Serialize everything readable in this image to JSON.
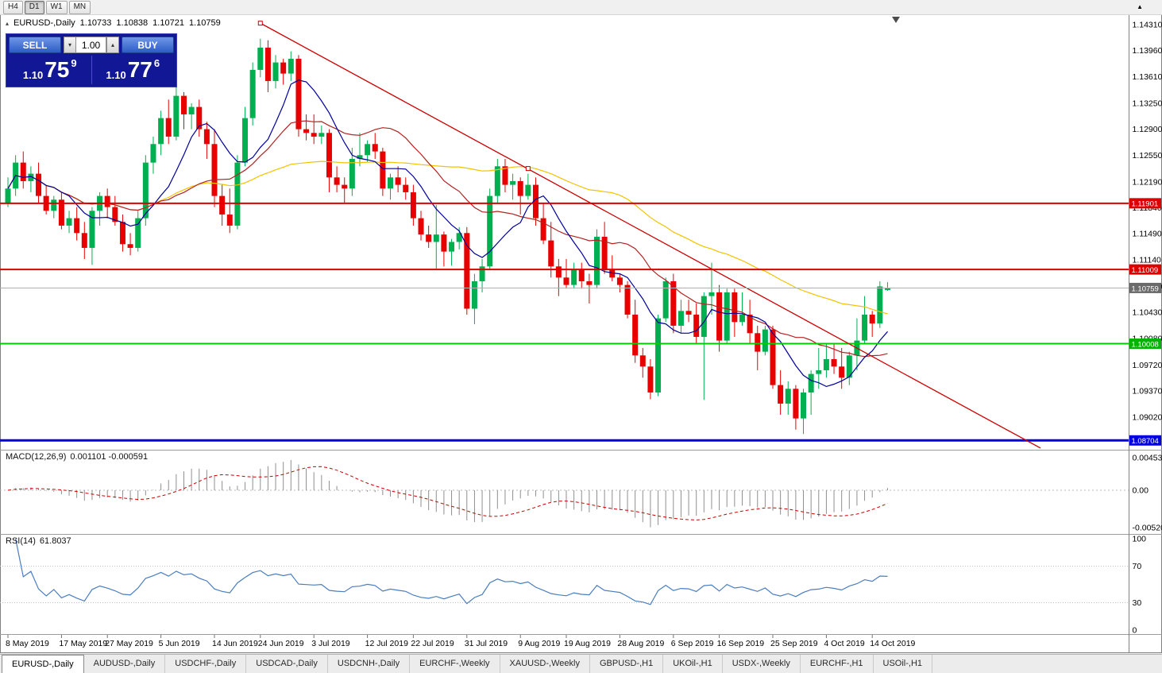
{
  "toolbar": {
    "timeframes": [
      "H4",
      "D1",
      "W1",
      "MN"
    ],
    "active": "D1",
    "overflow_icon": "▲"
  },
  "chart_header": {
    "collapse_icon": "▴",
    "symbol": "EURUSD-,Daily",
    "open": "1.10733",
    "high": "1.10838",
    "low": "1.10721",
    "close": "1.10759"
  },
  "one_click": {
    "sell": "SELL",
    "buy": "BUY",
    "volume": "1.00",
    "spin_down": "▾",
    "spin_up": "▴",
    "bid": {
      "head": "1.10",
      "big": "75",
      "sup": "9"
    },
    "ask": {
      "head": "1.10",
      "big": "77",
      "sup": "6"
    }
  },
  "indicators": {
    "macd": {
      "label": "MACD(12,26,9)",
      "values": "0.001101 -0.000591",
      "fast": 12,
      "slow": 26,
      "signal": 9,
      "axis": [
        {
          "text": "0.004536",
          "v": 0.004536
        },
        {
          "text": "0.00",
          "v": 0
        },
        {
          "text": "-0.005205",
          "v": -0.005205
        }
      ]
    },
    "rsi": {
      "label": "RSI(14)",
      "value": "61.8037",
      "period": 14,
      "levels": [
        {
          "text": "100",
          "v": 100
        },
        {
          "text": "70",
          "v": 70
        },
        {
          "text": "30",
          "v": 30
        },
        {
          "text": "0",
          "v": 0
        }
      ]
    }
  },
  "price_axis": {
    "labels": [
      "1.14310",
      "1.13960",
      "1.13610",
      "1.13250",
      "1.12900",
      "1.12550",
      "1.12190",
      "1.11840",
      "1.11490",
      "1.11140",
      "1.10780",
      "1.10430",
      "1.10080",
      "1.09720",
      "1.09370",
      "1.09020"
    ],
    "tags": [
      {
        "text": "1.11901",
        "price": 1.11901,
        "bg": "#dd0000"
      },
      {
        "text": "1.11009",
        "price": 1.11009,
        "bg": "#dd0000"
      },
      {
        "text": "1.10759",
        "price": 1.10759,
        "bg": "#6b6b6b"
      },
      {
        "text": "1.10008",
        "price": 1.10008,
        "bg": "#00b300"
      },
      {
        "text": "1.08704",
        "price": 1.08704,
        "bg": "#0000dd"
      }
    ]
  },
  "chart_data": {
    "type": "candlestick",
    "symbol": "EURUSD-",
    "timeframe": "Daily",
    "bull_color": "#00b050",
    "bear_color": "#e80000",
    "candles": [
      [
        1.119,
        1.1225,
        1.1185,
        1.121
      ],
      [
        1.121,
        1.1255,
        1.12,
        1.1245
      ],
      [
        1.1245,
        1.126,
        1.121,
        1.122
      ],
      [
        1.122,
        1.124,
        1.1205,
        1.123
      ],
      [
        1.123,
        1.1245,
        1.119,
        1.12
      ],
      [
        1.12,
        1.1215,
        1.1175,
        1.118
      ],
      [
        1.118,
        1.12,
        1.117,
        1.1195
      ],
      [
        1.1195,
        1.1205,
        1.1155,
        1.116
      ],
      [
        1.116,
        1.118,
        1.115,
        1.117
      ],
      [
        1.117,
        1.1185,
        1.114,
        1.115
      ],
      [
        1.115,
        1.1165,
        1.1115,
        1.113
      ],
      [
        1.113,
        1.1185,
        1.1107,
        1.118
      ],
      [
        1.118,
        1.1205,
        1.116,
        1.12
      ],
      [
        1.12,
        1.121,
        1.117,
        1.1185
      ],
      [
        1.1185,
        1.12,
        1.116,
        1.1165
      ],
      [
        1.1165,
        1.1175,
        1.1125,
        1.1135
      ],
      [
        1.1135,
        1.115,
        1.112,
        1.113
      ],
      [
        1.113,
        1.118,
        1.1125,
        1.117
      ],
      [
        1.117,
        1.1255,
        1.116,
        1.1245
      ],
      [
        1.1245,
        1.128,
        1.123,
        1.127
      ],
      [
        1.127,
        1.1315,
        1.1255,
        1.1305
      ],
      [
        1.1305,
        1.133,
        1.127,
        1.128
      ],
      [
        1.128,
        1.1348,
        1.1275,
        1.1335
      ],
      [
        1.1335,
        1.134,
        1.129,
        1.131
      ],
      [
        1.131,
        1.1325,
        1.129,
        1.132
      ],
      [
        1.132,
        1.133,
        1.128,
        1.129
      ],
      [
        1.129,
        1.13,
        1.125,
        1.127
      ],
      [
        1.127,
        1.129,
        1.1185,
        1.12
      ],
      [
        1.12,
        1.1215,
        1.116,
        1.1175
      ],
      [
        1.1175,
        1.121,
        1.115,
        1.116
      ],
      [
        1.116,
        1.1255,
        1.1155,
        1.1245
      ],
      [
        1.1245,
        1.132,
        1.124,
        1.1305
      ],
      [
        1.1305,
        1.138,
        1.1295,
        1.137
      ],
      [
        1.137,
        1.1412,
        1.136,
        1.14
      ],
      [
        1.14,
        1.141,
        1.134,
        1.1355
      ],
      [
        1.1355,
        1.139,
        1.1345,
        1.138
      ],
      [
        1.138,
        1.1385,
        1.135,
        1.1365
      ],
      [
        1.1365,
        1.1395,
        1.1355,
        1.1385
      ],
      [
        1.1385,
        1.139,
        1.128,
        1.129
      ],
      [
        1.129,
        1.131,
        1.1275,
        1.1285
      ],
      [
        1.1285,
        1.131,
        1.127,
        1.128
      ],
      [
        1.128,
        1.1295,
        1.127,
        1.1285
      ],
      [
        1.1285,
        1.129,
        1.1205,
        1.1225
      ],
      [
        1.1225,
        1.124,
        1.1205,
        1.1215
      ],
      [
        1.1215,
        1.1225,
        1.119,
        1.121
      ],
      [
        1.121,
        1.1265,
        1.12,
        1.125
      ],
      [
        1.125,
        1.1285,
        1.124,
        1.1255
      ],
      [
        1.1255,
        1.1275,
        1.1245,
        1.127
      ],
      [
        1.127,
        1.1285,
        1.125,
        1.126
      ],
      [
        1.126,
        1.1265,
        1.12,
        1.121
      ],
      [
        1.121,
        1.123,
        1.1195,
        1.1225
      ],
      [
        1.1225,
        1.124,
        1.1205,
        1.1215
      ],
      [
        1.1215,
        1.1225,
        1.1195,
        1.1205
      ],
      [
        1.1205,
        1.1215,
        1.116,
        1.117
      ],
      [
        1.117,
        1.118,
        1.114,
        1.1148
      ],
      [
        1.1148,
        1.116,
        1.113,
        1.1138
      ],
      [
        1.1138,
        1.1188,
        1.1102,
        1.1148
      ],
      [
        1.1148,
        1.1152,
        1.1105,
        1.1125
      ],
      [
        1.1125,
        1.1142,
        1.1106,
        1.1138
      ],
      [
        1.1138,
        1.1158,
        1.1128,
        1.115
      ],
      [
        1.115,
        1.1158,
        1.104,
        1.1048
      ],
      [
        1.1048,
        1.1095,
        1.1027,
        1.1085
      ],
      [
        1.1085,
        1.1115,
        1.107,
        1.1105
      ],
      [
        1.1105,
        1.121,
        1.11,
        1.12
      ],
      [
        1.12,
        1.125,
        1.119,
        1.124
      ],
      [
        1.124,
        1.125,
        1.1205,
        1.1215
      ],
      [
        1.1215,
        1.123,
        1.1195,
        1.122
      ],
      [
        1.122,
        1.1225,
        1.1175,
        1.12
      ],
      [
        1.12,
        1.123,
        1.1195,
        1.1215
      ],
      [
        1.1215,
        1.1225,
        1.116,
        1.117
      ],
      [
        1.117,
        1.119,
        1.1135,
        1.114
      ],
      [
        1.114,
        1.1165,
        1.109,
        1.1105
      ],
      [
        1.1105,
        1.1115,
        1.1065,
        1.109
      ],
      [
        1.109,
        1.1115,
        1.1075,
        1.108
      ],
      [
        1.108,
        1.111,
        1.1075,
        1.11
      ],
      [
        1.11,
        1.111,
        1.1075,
        1.1085
      ],
      [
        1.1085,
        1.1095,
        1.1055,
        1.108
      ],
      [
        1.108,
        1.1155,
        1.1075,
        1.1145
      ],
      [
        1.1145,
        1.1165,
        1.1095,
        1.11
      ],
      [
        1.11,
        1.112,
        1.1085,
        1.109
      ],
      [
        1.109,
        1.1095,
        1.107,
        1.108
      ],
      [
        1.108,
        1.1085,
        1.1035,
        1.104
      ],
      [
        1.104,
        1.106,
        1.0975,
        1.0985
      ],
      [
        1.0985,
        1.0995,
        1.0955,
        1.097
      ],
      [
        1.097,
        1.098,
        1.0926,
        1.0935
      ],
      [
        1.0935,
        1.104,
        1.093,
        1.1035
      ],
      [
        1.1035,
        1.109,
        1.103,
        1.1085
      ],
      [
        1.1085,
        1.1095,
        1.1015,
        1.1025
      ],
      [
        1.1025,
        1.106,
        1.1015,
        1.1045
      ],
      [
        1.1045,
        1.106,
        1.103,
        1.104
      ],
      [
        1.104,
        1.1055,
        1.1,
        1.101
      ],
      [
        1.101,
        1.107,
        1.0925,
        1.1065
      ],
      [
        1.1065,
        1.111,
        1.104,
        1.107
      ],
      [
        1.107,
        1.108,
        1.099,
        1.1005
      ],
      [
        1.1005,
        1.1075,
        1.1,
        1.107
      ],
      [
        1.107,
        1.1075,
        1.101,
        1.103
      ],
      [
        1.103,
        1.107,
        1.1025,
        1.104
      ],
      [
        1.104,
        1.106,
        1.1,
        1.1015
      ],
      [
        1.1015,
        1.1025,
        1.0965,
        1.099
      ],
      [
        1.099,
        1.1025,
        1.0985,
        1.102
      ],
      [
        1.102,
        1.1025,
        1.094,
        1.0945
      ],
      [
        1.0945,
        1.0965,
        1.0905,
        1.092
      ],
      [
        1.092,
        1.095,
        1.0905,
        1.094
      ],
      [
        1.094,
        1.0945,
        1.0885,
        1.09
      ],
      [
        1.09,
        1.094,
        1.0879,
        1.0935
      ],
      [
        1.0935,
        1.0965,
        1.0905,
        1.096
      ],
      [
        1.096,
        1.0995,
        1.094,
        1.0965
      ],
      [
        1.0965,
        1.1,
        1.0955,
        1.098
      ],
      [
        1.098,
        1.1,
        1.096,
        1.097
      ],
      [
        1.097,
        1.0995,
        1.094,
        1.0955
      ],
      [
        1.0955,
        1.099,
        1.0945,
        1.0985
      ],
      [
        1.0985,
        1.1035,
        1.0965,
        1.1005
      ],
      [
        1.1005,
        1.1065,
        1.1,
        1.104
      ],
      [
        1.104,
        1.1045,
        1.101,
        1.1028
      ],
      [
        1.1028,
        1.1085,
        1.1022,
        1.1078
      ],
      [
        1.10733,
        1.10838,
        1.10721,
        1.10759
      ]
    ],
    "date_labels": [
      [
        "8 May 2019",
        0
      ],
      [
        "17 May 2019",
        7
      ],
      [
        "27 May 2019",
        13
      ],
      [
        "5 Jun 2019",
        20
      ],
      [
        "14 Jun 2019",
        27
      ],
      [
        "24 Jun 2019",
        33
      ],
      [
        "3 Jul 2019",
        40
      ],
      [
        "12 Jul 2019",
        47
      ],
      [
        "22 Jul 2019",
        53
      ],
      [
        "31 Jul 2019",
        60
      ],
      [
        "9 Aug 2019",
        67
      ],
      [
        "19 Aug 2019",
        73
      ],
      [
        "28 Aug 2019",
        80
      ],
      [
        "6 Sep 2019",
        87
      ],
      [
        "16 Sep 2019",
        93
      ],
      [
        "25 Sep 2019",
        100
      ],
      [
        "4 Oct 2019",
        107
      ],
      [
        "14 Oct 2019",
        113
      ]
    ],
    "moving_averages": [
      {
        "period": 50,
        "color": "#f2c200"
      },
      {
        "period": 20,
        "color": "#b22222"
      },
      {
        "period": 8,
        "color": "#00009c"
      }
    ],
    "hlines": [
      {
        "price": 1.11901,
        "color": "#dd0000",
        "w": 2
      },
      {
        "price": 1.11009,
        "color": "#dd0000",
        "w": 2
      },
      {
        "price": 1.10008,
        "color": "#00cc00",
        "w": 2
      },
      {
        "price": 1.08704,
        "color": "#0000dd",
        "w": 3
      }
    ],
    "trendline": {
      "i1": 33,
      "p1": 1.1433,
      "i2": 135,
      "p2": 1.086,
      "color": "#cc0000",
      "handles": [
        [
          33,
          1.1433
        ],
        [
          68,
          1.1237
        ]
      ]
    },
    "current_price": 1.10759
  },
  "tabs": {
    "active": 0,
    "items": [
      "EURUSD-,Daily",
      "AUDUSD-,Daily",
      "USDCHF-,Daily",
      "USDCAD-,Daily",
      "USDCNH-,Daily",
      "EURCHF-,Weekly",
      "XAUUSD-,Weekly",
      "GBPUSD-,H1",
      "UKOil-,H1",
      "USDX-,Weekly",
      "EURCHF-,H1",
      "USOil-,H1"
    ]
  }
}
